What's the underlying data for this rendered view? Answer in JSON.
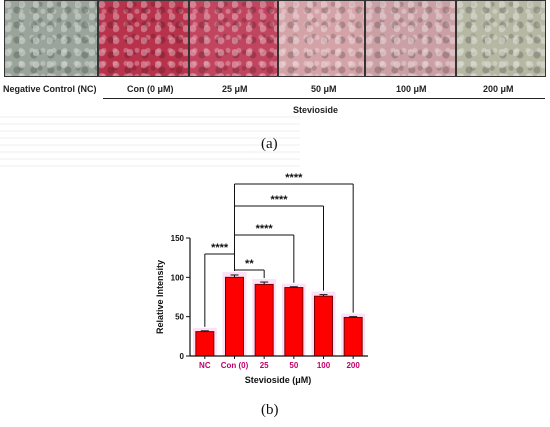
{
  "figure": {
    "panel_a": {
      "letter": "(a)",
      "images": [
        {
          "label": "Negative Control (NC)",
          "tint": "#9aa49a"
        },
        {
          "label": "Con (0 μM)",
          "tint": "#b8324c"
        },
        {
          "label": "25 μM",
          "tint": "#c24560"
        },
        {
          "label": "50 μM",
          "tint": "#d4a3a8"
        },
        {
          "label": "100 μM",
          "tint": "#cba0a5"
        },
        {
          "label": "200 μM",
          "tint": "#b6b8a4"
        }
      ],
      "group_label": "Stevioside"
    },
    "panel_b": {
      "letter": "(b)"
    }
  },
  "chart_data": {
    "type": "bar",
    "categories": [
      "NC",
      "Con (0)",
      "25",
      "50",
      "100",
      "200"
    ],
    "values": [
      31,
      100,
      91,
      87,
      76,
      49
    ],
    "errors": [
      1,
      3,
      3,
      1,
      2,
      1
    ],
    "xlabel": "Stevioside (μM)",
    "ylabel": "Relative Intensity",
    "ylim": [
      0,
      150
    ],
    "yticks": [
      0,
      50,
      100,
      150
    ],
    "bar_color": "#ff0000",
    "bar_edge": "#7a0000",
    "significance": [
      {
        "from": "Con (0)",
        "to": "NC",
        "label": "****"
      },
      {
        "from": "Con (0)",
        "to": "25",
        "label": "**"
      },
      {
        "from": "Con (0)",
        "to": "50",
        "label": "****"
      },
      {
        "from": "Con (0)",
        "to": "100",
        "label": "****"
      },
      {
        "from": "Con (0)",
        "to": "200",
        "label": "****"
      }
    ]
  }
}
